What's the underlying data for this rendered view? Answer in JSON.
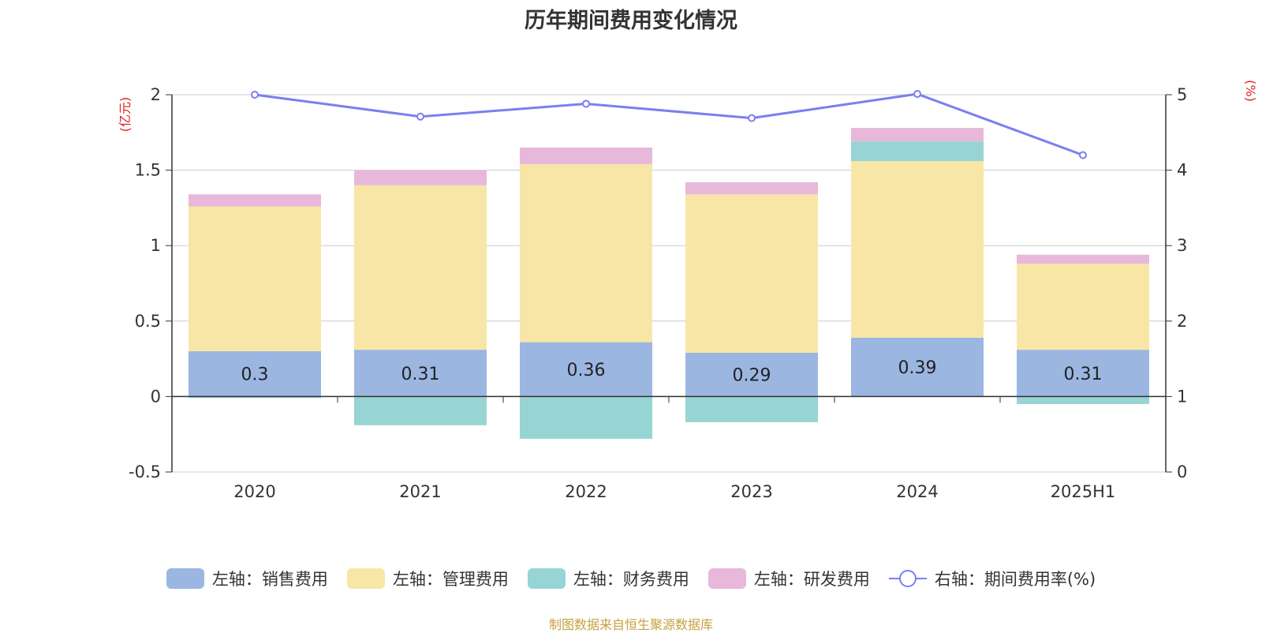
{
  "chart_data": {
    "type": "bar",
    "title": "历年期间费用变化情况",
    "categories": [
      "2020",
      "2021",
      "2022",
      "2023",
      "2024",
      "2025H1"
    ],
    "left_axis": {
      "unit_label": "(亿元)",
      "ylim": [
        -0.5,
        2
      ],
      "ticks": [
        "-0.5",
        "0",
        "0.5",
        "1",
        "1.5",
        "2"
      ]
    },
    "right_axis": {
      "unit_label": "(%)",
      "ylim": [
        0,
        5
      ],
      "ticks": [
        "0",
        "1",
        "2",
        "3",
        "4",
        "5"
      ]
    },
    "series": [
      {
        "name": "左轴：销售费用",
        "type": "bar",
        "axis": "left",
        "color": "#9bb6e0",
        "values": [
          0.3,
          0.31,
          0.36,
          0.29,
          0.39,
          0.31
        ],
        "labels": [
          "0.3",
          "0.31",
          "0.36",
          "0.29",
          "0.39",
          "0.31"
        ]
      },
      {
        "name": "左轴：管理费用",
        "type": "bar",
        "axis": "left",
        "color": "#f7e6a6",
        "values": [
          0.96,
          1.09,
          1.18,
          1.05,
          1.17,
          0.57
        ]
      },
      {
        "name": "左轴：财务费用",
        "type": "bar",
        "axis": "left",
        "color": "#97d4d4",
        "values": [
          -0.01,
          -0.19,
          -0.28,
          -0.17,
          0.13,
          -0.05
        ]
      },
      {
        "name": "左轴：研发费用",
        "type": "bar",
        "axis": "left",
        "color": "#e8b8da",
        "values": [
          0.08,
          0.1,
          0.11,
          0.08,
          0.09,
          0.06
        ]
      },
      {
        "name": "右轴：期间费用率(%)",
        "type": "line",
        "axis": "right",
        "color": "#7b7ff0",
        "values": [
          5.0,
          4.71,
          4.88,
          4.69,
          5.01,
          4.2
        ]
      }
    ],
    "grid": true,
    "legend_position": "bottom"
  },
  "source": "制图数据来自恒生聚源数据库"
}
